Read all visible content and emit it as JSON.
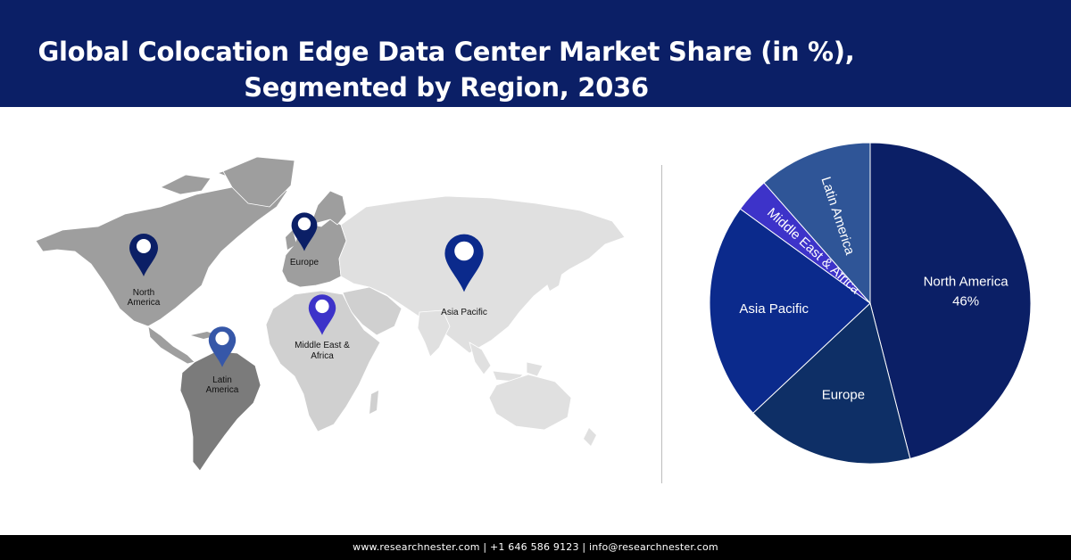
{
  "header": {
    "title_line1": "Global Colocation Edge Data Center Market Share (in %),",
    "title_line2": "Segmented by Region, 2036"
  },
  "map": {
    "pins": [
      {
        "key": "north-america",
        "label_lines": [
          "North",
          "America"
        ],
        "color": "#0b1f66"
      },
      {
        "key": "europe",
        "label_lines": [
          "Europe"
        ],
        "color": "#0b1f66"
      },
      {
        "key": "asia-pacific",
        "label_lines": [
          "Asia Pacific"
        ],
        "color": "#0b2a8c"
      },
      {
        "key": "middle-east-africa",
        "label_lines": [
          "Middle East &",
          "Africa"
        ],
        "color": "#3d33c9"
      },
      {
        "key": "latin-america",
        "label_lines": [
          "Latin",
          "America"
        ],
        "color": "#3657a8"
      }
    ]
  },
  "chart_data": {
    "type": "pie",
    "slices": [
      {
        "name": "North America",
        "value": 46,
        "value_label": "46%",
        "color": "#0b1f66"
      },
      {
        "name": "Europe",
        "value": 17,
        "color": "#0e2f66"
      },
      {
        "name": "Asia Pacific",
        "value": 22,
        "color": "#0b2a8c"
      },
      {
        "name": "Middle East & Africa",
        "value": 3.5,
        "color": "#3d33c9"
      },
      {
        "name": "Latin America",
        "value": 11.5,
        "color": "#2f5597"
      }
    ]
  },
  "footer": {
    "text": "www.researchnester.com | +1 646 586 9123 | info@researchnester.com"
  }
}
